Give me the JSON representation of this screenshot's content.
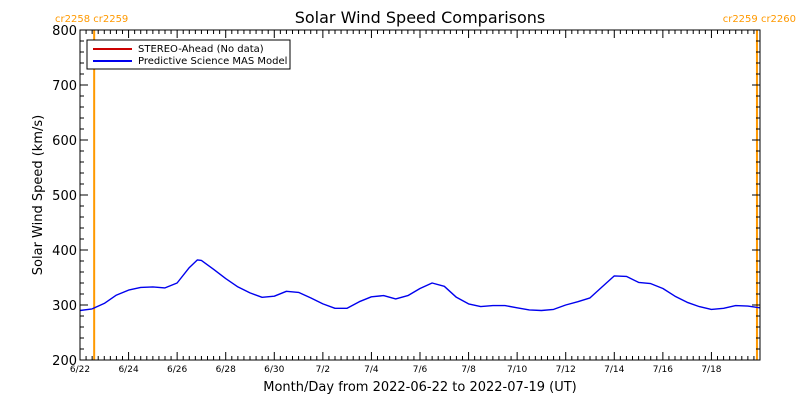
{
  "chart_data": {
    "type": "line",
    "title": "Solar Wind Speed Comparisons",
    "xlabel": "Month/Day from 2022-06-22 to 2022-07-19 (UT)",
    "ylabel": "Solar Wind Speed (km/s)",
    "ylim": [
      200,
      800
    ],
    "xlim": [
      "2022-06-22",
      "2022-07-20"
    ],
    "y_ticks": [
      "200",
      "300",
      "400",
      "500",
      "600",
      "700",
      "800"
    ],
    "x_ticks": [
      {
        "date": "2022-06-22",
        "label": "6/22"
      },
      {
        "date": "2022-06-24",
        "label": "6/24"
      },
      {
        "date": "2022-06-26",
        "label": "6/26"
      },
      {
        "date": "2022-06-28",
        "label": "6/28"
      },
      {
        "date": "2022-06-30",
        "label": "6/30"
      },
      {
        "date": "2022-07-02",
        "label": "7/2"
      },
      {
        "date": "2022-07-04",
        "label": "7/4"
      },
      {
        "date": "2022-07-06",
        "label": "7/6"
      },
      {
        "date": "2022-07-08",
        "label": "7/8"
      },
      {
        "date": "2022-07-10",
        "label": "7/10"
      },
      {
        "date": "2022-07-12",
        "label": "7/12"
      },
      {
        "date": "2022-07-14",
        "label": "7/14"
      },
      {
        "date": "2022-07-16",
        "label": "7/16"
      },
      {
        "date": "2022-07-18",
        "label": "7/18"
      }
    ],
    "legend": {
      "placement": "top-left",
      "entries": [
        {
          "label": "STEREO-Ahead (No data)",
          "color": "#cc0000"
        },
        {
          "label": "Predictive Science MAS Model",
          "color": "#0000ee"
        }
      ]
    },
    "carrington_markers": [
      {
        "date": "2022-06-22 14:00",
        "left_label": "cr2258",
        "right_label": "cr2259",
        "label_side": "left"
      },
      {
        "date": "2022-07-19 21:00",
        "left_label": "cr2259",
        "right_label": "cr2260",
        "label_side": "right"
      }
    ],
    "marker_color": "#ff9900",
    "series": [
      {
        "name": "Predictive Science MAS Model",
        "color": "#0000ee",
        "points": [
          [
            "2022-06-22",
            290
          ],
          [
            "2022-06-22 12:00",
            293
          ],
          [
            "2022-06-23",
            303
          ],
          [
            "2022-06-23 12:00",
            318
          ],
          [
            "2022-06-24",
            327
          ],
          [
            "2022-06-24 12:00",
            332
          ],
          [
            "2022-06-25",
            333
          ],
          [
            "2022-06-25 12:00",
            331
          ],
          [
            "2022-06-26",
            340
          ],
          [
            "2022-06-26 12:00",
            368
          ],
          [
            "2022-06-26 20:00",
            382
          ],
          [
            "2022-06-27",
            381
          ],
          [
            "2022-06-27 12:00",
            365
          ],
          [
            "2022-06-28",
            348
          ],
          [
            "2022-06-28 12:00",
            333
          ],
          [
            "2022-06-29",
            322
          ],
          [
            "2022-06-29 12:00",
            314
          ],
          [
            "2022-06-30",
            316
          ],
          [
            "2022-06-30 12:00",
            325
          ],
          [
            "2022-07-01",
            323
          ],
          [
            "2022-07-01 12:00",
            313
          ],
          [
            "2022-07-02",
            302
          ],
          [
            "2022-07-02 12:00",
            294
          ],
          [
            "2022-07-03",
            294
          ],
          [
            "2022-07-03 12:00",
            306
          ],
          [
            "2022-07-04",
            315
          ],
          [
            "2022-07-04 12:00",
            317
          ],
          [
            "2022-07-05",
            311
          ],
          [
            "2022-07-05 12:00",
            317
          ],
          [
            "2022-07-06",
            330
          ],
          [
            "2022-07-06 12:00",
            340
          ],
          [
            "2022-07-07",
            334
          ],
          [
            "2022-07-07 12:00",
            314
          ],
          [
            "2022-07-08",
            302
          ],
          [
            "2022-07-08 12:00",
            297
          ],
          [
            "2022-07-09",
            299
          ],
          [
            "2022-07-09 12:00",
            299
          ],
          [
            "2022-07-10",
            295
          ],
          [
            "2022-07-10 12:00",
            291
          ],
          [
            "2022-07-11",
            290
          ],
          [
            "2022-07-11 12:00",
            292
          ],
          [
            "2022-07-12",
            300
          ],
          [
            "2022-07-12 12:00",
            306
          ],
          [
            "2022-07-13",
            313
          ],
          [
            "2022-07-13 12:00",
            333
          ],
          [
            "2022-07-14",
            353
          ],
          [
            "2022-07-14 12:00",
            352
          ],
          [
            "2022-07-15",
            341
          ],
          [
            "2022-07-15 12:00",
            339
          ],
          [
            "2022-07-16",
            330
          ],
          [
            "2022-07-16 12:00",
            316
          ],
          [
            "2022-07-17",
            305
          ],
          [
            "2022-07-17 12:00",
            297
          ],
          [
            "2022-07-18",
            292
          ],
          [
            "2022-07-18 12:00",
            294
          ],
          [
            "2022-07-19",
            299
          ],
          [
            "2022-07-19 12:00",
            298
          ],
          [
            "2022-07-20",
            295
          ]
        ]
      }
    ],
    "grid": false
  }
}
